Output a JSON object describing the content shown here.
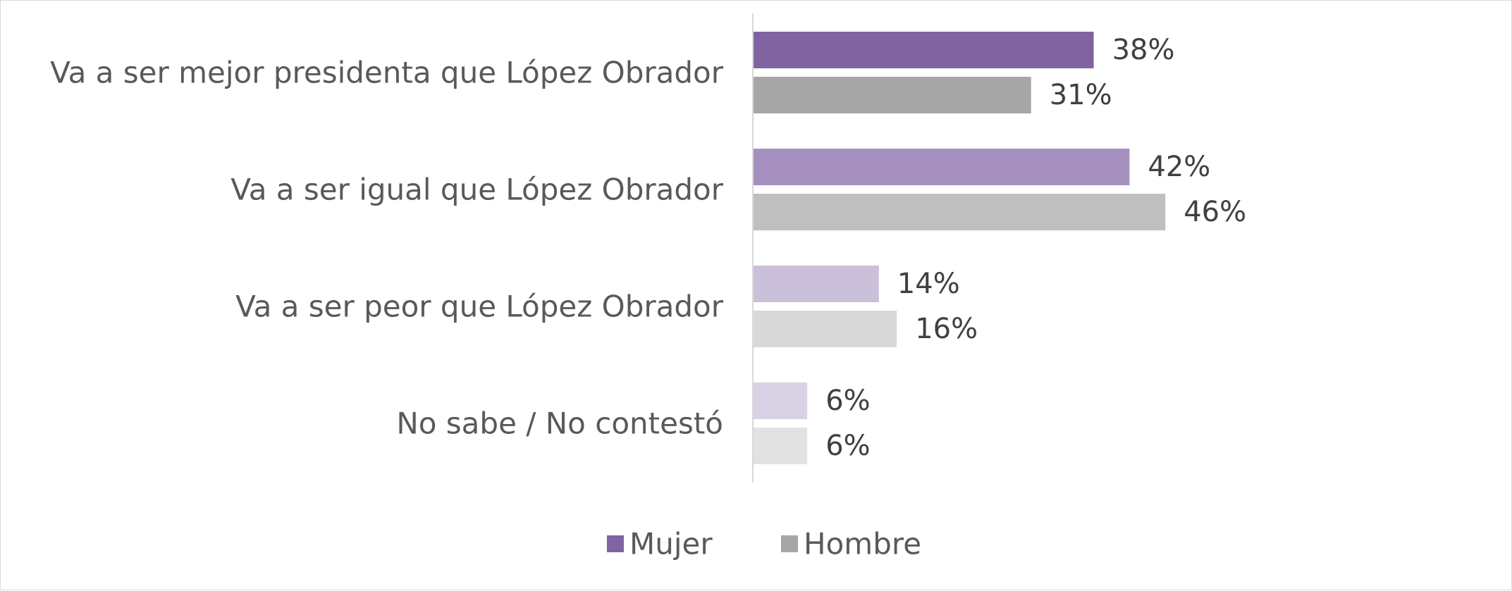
{
  "chart_data": {
    "type": "bar",
    "orientation": "horizontal",
    "categories": [
      "Va a ser mejor presidenta que López Obrador",
      "Va a ser igual que López Obrador",
      "Va a ser peor que López Obrador",
      "No sabe / No contestó"
    ],
    "series": [
      {
        "name": "Mujer",
        "values": [
          38,
          42,
          14,
          6
        ],
        "labels": [
          "38%",
          "42%",
          "14%",
          "6%"
        ],
        "colors": [
          "#8064a2",
          "#a690c0",
          "#cbc0da",
          "#d9d2e5"
        ]
      },
      {
        "name": "Hombre",
        "values": [
          31,
          46,
          16,
          6
        ],
        "labels": [
          "31%",
          "46%",
          "16%",
          "6%"
        ],
        "colors": [
          "#a6a6a6",
          "#bfbfbf",
          "#d9d9d9",
          "#e2e2e2"
        ]
      }
    ],
    "xlim": [
      0,
      100
    ],
    "unit": "%",
    "legend": {
      "placement": "bottom-center",
      "entries": [
        {
          "label": "Mujer",
          "color": "#8064a2"
        },
        {
          "label": "Hombre",
          "color": "#a6a6a6"
        }
      ]
    },
    "grid": false,
    "title": "",
    "xlabel": "",
    "ylabel": ""
  }
}
